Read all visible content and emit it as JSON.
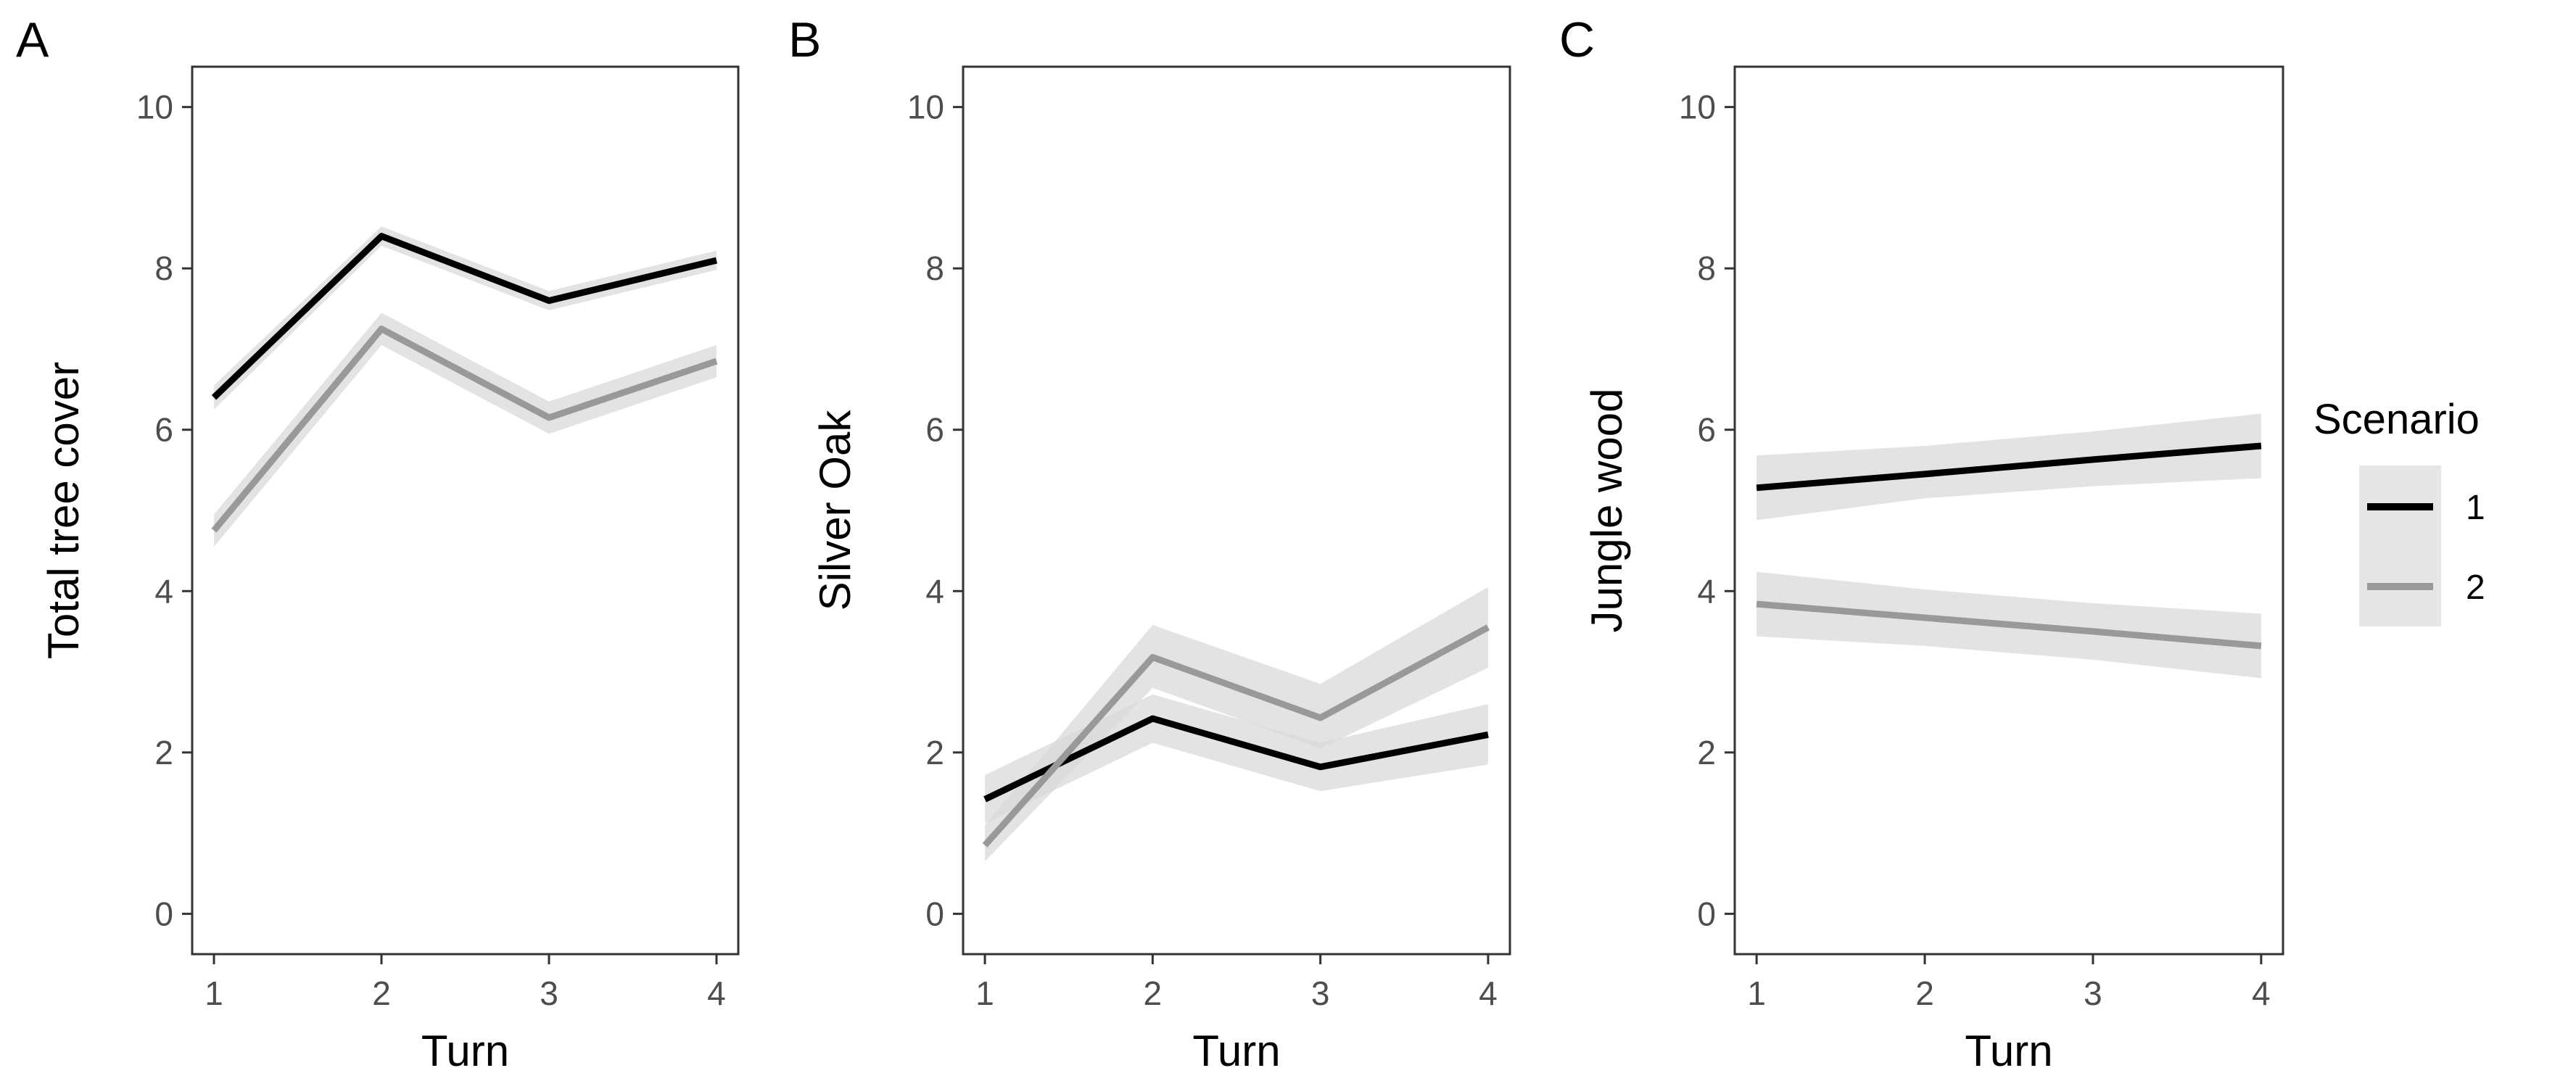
{
  "chart_data": [
    {
      "panel_label": "A",
      "type": "line",
      "title": "",
      "xlabel": "Turn",
      "ylabel": "Total tree cover",
      "x": [
        1,
        2,
        3,
        4
      ],
      "xticks": [
        "1",
        "2",
        "3",
        "4"
      ],
      "yticks": [
        "0",
        "2",
        "4",
        "6",
        "8",
        "10"
      ],
      "xlim": [
        0.87,
        4.13
      ],
      "ylim": [
        -0.5,
        10.5
      ],
      "grid": false,
      "series": [
        {
          "name": "1",
          "color": "#000000",
          "values": [
            6.4,
            8.4,
            7.6,
            8.1
          ],
          "ribbon_lower": [
            6.25,
            8.28,
            7.48,
            7.98
          ],
          "ribbon_upper": [
            6.55,
            8.52,
            7.72,
            8.22
          ]
        },
        {
          "name": "2",
          "color": "#999999",
          "values": [
            4.75,
            7.25,
            6.15,
            6.85
          ],
          "ribbon_lower": [
            4.55,
            7.05,
            5.95,
            6.65
          ],
          "ribbon_upper": [
            4.95,
            7.45,
            6.35,
            7.05
          ]
        }
      ]
    },
    {
      "panel_label": "B",
      "type": "line",
      "title": "",
      "xlabel": "Turn",
      "ylabel": "Silver Oak",
      "x": [
        1,
        2,
        3,
        4
      ],
      "xticks": [
        "1",
        "2",
        "3",
        "4"
      ],
      "yticks": [
        "0",
        "2",
        "4",
        "6",
        "8",
        "10"
      ],
      "xlim": [
        0.87,
        4.13
      ],
      "ylim": [
        -0.5,
        10.5
      ],
      "grid": false,
      "series": [
        {
          "name": "1",
          "color": "#000000",
          "values": [
            1.42,
            2.42,
            1.82,
            2.22
          ],
          "ribbon_lower": [
            1.12,
            2.12,
            1.52,
            1.85
          ],
          "ribbon_upper": [
            1.72,
            2.72,
            2.12,
            2.6
          ]
        },
        {
          "name": "2",
          "color": "#999999",
          "values": [
            0.85,
            3.18,
            2.43,
            3.55
          ],
          "ribbon_lower": [
            0.65,
            2.8,
            2.05,
            3.05
          ],
          "ribbon_upper": [
            1.1,
            3.58,
            2.85,
            4.05
          ]
        }
      ]
    },
    {
      "panel_label": "C",
      "type": "line",
      "title": "",
      "xlabel": "Turn",
      "ylabel": "Jungle wood",
      "x": [
        1,
        2,
        3,
        4
      ],
      "xticks": [
        "1",
        "2",
        "3",
        "4"
      ],
      "yticks": [
        "0",
        "2",
        "4",
        "6",
        "8",
        "10"
      ],
      "xlim": [
        0.87,
        4.13
      ],
      "ylim": [
        -0.5,
        10.5
      ],
      "grid": false,
      "series": [
        {
          "name": "1",
          "color": "#000000",
          "values": [
            5.28,
            5.45,
            5.63,
            5.8
          ],
          "ribbon_lower": [
            4.88,
            5.15,
            5.3,
            5.4
          ],
          "ribbon_upper": [
            5.68,
            5.8,
            5.98,
            6.2
          ]
        },
        {
          "name": "2",
          "color": "#999999",
          "values": [
            3.84,
            3.67,
            3.5,
            3.32
          ],
          "ribbon_lower": [
            3.44,
            3.32,
            3.15,
            2.92
          ],
          "ribbon_upper": [
            4.24,
            4.02,
            3.85,
            3.72
          ]
        }
      ]
    }
  ],
  "legend": {
    "title": "Scenario",
    "items": [
      {
        "label": "1",
        "color": "#000000"
      },
      {
        "label": "2",
        "color": "#999999"
      }
    ],
    "placement": "right",
    "key_background": "#e6e6e6"
  },
  "style": {
    "ribbon_color": "#d9d9d9",
    "axis_color": "#333333"
  }
}
